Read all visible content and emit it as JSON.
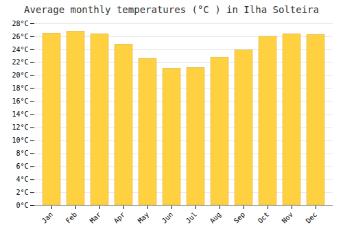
{
  "chart_data": {
    "type": "bar",
    "title": "Average monthly temperatures (°C ) in Ilha Solteira",
    "categories": [
      "Jan",
      "Feb",
      "Mar",
      "Apr",
      "May",
      "Jun",
      "Jul",
      "Aug",
      "Sep",
      "Oct",
      "Nov",
      "Dec"
    ],
    "values": [
      26.5,
      26.8,
      26.4,
      24.8,
      22.6,
      21.1,
      21.2,
      22.8,
      23.9,
      26.0,
      26.4,
      26.3
    ],
    "color": "#FFD040",
    "ylim": [
      0,
      28
    ],
    "yticks": [
      {
        "value": 0,
        "label": "0°C"
      },
      {
        "value": 2,
        "label": "2°C"
      },
      {
        "value": 4,
        "label": "4°C"
      },
      {
        "value": 6,
        "label": "6°C"
      },
      {
        "value": 8,
        "label": "8°C"
      },
      {
        "value": 10,
        "label": "10°C"
      },
      {
        "value": 12,
        "label": "12°C"
      },
      {
        "value": 14,
        "label": "14°C"
      },
      {
        "value": 16,
        "label": "16°C"
      },
      {
        "value": 18,
        "label": "18°C"
      },
      {
        "value": 20,
        "label": "20°C"
      },
      {
        "value": 22,
        "label": "22°C"
      },
      {
        "value": 24,
        "label": "24°C"
      },
      {
        "value": 26,
        "label": "26°C"
      },
      {
        "value": 28,
        "label": "28°C"
      }
    ],
    "grid": true
  }
}
